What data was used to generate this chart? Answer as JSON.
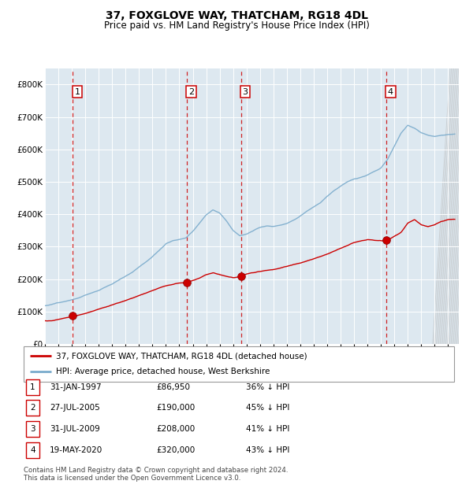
{
  "title": "37, FOXGLOVE WAY, THATCHAM, RG18 4DL",
  "subtitle": "Price paid vs. HM Land Registry's House Price Index (HPI)",
  "background_color": "#dde8f0",
  "plot_bg_color": "#dde8f0",
  "ylim": [
    0,
    850000
  ],
  "yticks": [
    0,
    100000,
    200000,
    300000,
    400000,
    500000,
    600000,
    700000,
    800000
  ],
  "ytick_labels": [
    "£0",
    "£100K",
    "£200K",
    "£300K",
    "£400K",
    "£500K",
    "£600K",
    "£700K",
    "£800K"
  ],
  "xlim_start": 1995.0,
  "xlim_end": 2025.8,
  "sales": [
    {
      "label": "1",
      "date_num": 1997.08,
      "price": 86950
    },
    {
      "label": "2",
      "date_num": 2005.57,
      "price": 190000
    },
    {
      "label": "3",
      "date_num": 2009.58,
      "price": 208000
    },
    {
      "label": "4",
      "date_num": 2020.38,
      "price": 320000
    }
  ],
  "sale_dot_color": "#cc0000",
  "hpi_line_color": "#7aabcc",
  "price_line_color": "#cc0000",
  "legend_items": [
    {
      "label": "37, FOXGLOVE WAY, THATCHAM, RG18 4DL (detached house)",
      "color": "#cc0000"
    },
    {
      "label": "HPI: Average price, detached house, West Berkshire",
      "color": "#7aabcc"
    }
  ],
  "table_rows": [
    {
      "num": "1",
      "date": "31-JAN-1997",
      "price": "£86,950",
      "hpi": "36% ↓ HPI"
    },
    {
      "num": "2",
      "date": "27-JUL-2005",
      "price": "£190,000",
      "hpi": "45% ↓ HPI"
    },
    {
      "num": "3",
      "date": "31-JUL-2009",
      "price": "£208,000",
      "hpi": "41% ↓ HPI"
    },
    {
      "num": "4",
      "date": "19-MAY-2020",
      "price": "£320,000",
      "hpi": "43% ↓ HPI"
    }
  ],
  "footnote": "Contains HM Land Registry data © Crown copyright and database right 2024.\nThis data is licensed under the Open Government Licence v3.0.",
  "hpi_waypoints_x": [
    1995.0,
    1995.5,
    1996.0,
    1996.5,
    1997.0,
    1997.5,
    1998.0,
    1998.5,
    1999.0,
    1999.5,
    2000.0,
    2000.5,
    2001.0,
    2001.5,
    2002.0,
    2002.5,
    2003.0,
    2003.5,
    2004.0,
    2004.5,
    2005.0,
    2005.5,
    2006.0,
    2006.5,
    2007.0,
    2007.5,
    2008.0,
    2008.5,
    2009.0,
    2009.5,
    2010.0,
    2010.5,
    2011.0,
    2011.5,
    2012.0,
    2012.5,
    2013.0,
    2013.5,
    2014.0,
    2014.5,
    2015.0,
    2015.5,
    2016.0,
    2016.5,
    2017.0,
    2017.5,
    2018.0,
    2018.5,
    2019.0,
    2019.5,
    2020.0,
    2020.5,
    2021.0,
    2021.5,
    2022.0,
    2022.5,
    2023.0,
    2023.5,
    2024.0,
    2024.5,
    2025.0
  ],
  "hpi_waypoints_y": [
    118000,
    122000,
    128000,
    133000,
    138000,
    143000,
    152000,
    160000,
    168000,
    178000,
    188000,
    200000,
    212000,
    225000,
    242000,
    258000,
    275000,
    295000,
    315000,
    325000,
    330000,
    335000,
    355000,
    380000,
    405000,
    420000,
    410000,
    385000,
    355000,
    340000,
    345000,
    355000,
    365000,
    370000,
    368000,
    372000,
    378000,
    388000,
    400000,
    415000,
    428000,
    440000,
    460000,
    478000,
    492000,
    505000,
    515000,
    520000,
    528000,
    538000,
    548000,
    575000,
    615000,
    655000,
    680000,
    670000,
    655000,
    648000,
    645000,
    648000,
    650000
  ],
  "price_waypoints_x": [
    1995.5,
    1996.5,
    1997.08,
    1998.0,
    1999.0,
    2000.0,
    2001.0,
    2002.0,
    2003.0,
    2004.0,
    2005.0,
    2005.57,
    2006.0,
    2006.5,
    2007.0,
    2007.5,
    2008.0,
    2008.5,
    2009.0,
    2009.58,
    2010.0,
    2011.0,
    2012.0,
    2013.0,
    2014.0,
    2015.0,
    2016.0,
    2017.0,
    2018.0,
    2019.0,
    2020.0,
    2020.38,
    2021.0,
    2021.5,
    2022.0,
    2022.5,
    2023.0,
    2023.5,
    2024.0,
    2024.5,
    2025.0
  ],
  "price_waypoints_y": [
    72000,
    82000,
    86950,
    96000,
    108000,
    122000,
    138000,
    152000,
    168000,
    182000,
    188000,
    190000,
    196000,
    205000,
    215000,
    220000,
    214000,
    208000,
    205000,
    208000,
    215000,
    222000,
    230000,
    240000,
    252000,
    265000,
    280000,
    298000,
    315000,
    325000,
    322000,
    320000,
    335000,
    348000,
    375000,
    385000,
    368000,
    362000,
    368000,
    378000,
    385000
  ]
}
